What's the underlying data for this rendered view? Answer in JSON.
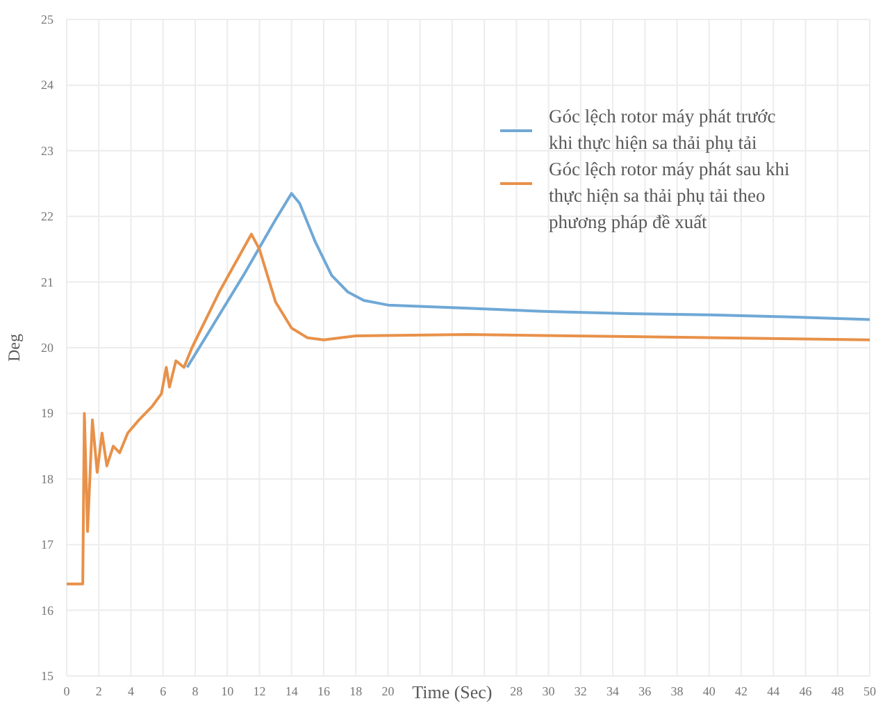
{
  "chart_data": {
    "type": "line",
    "xlabel": "Time (Sec)",
    "ylabel": "Deg",
    "xlim": [
      0,
      50
    ],
    "ylim": [
      15,
      25
    ],
    "xticks": [
      0,
      2,
      4,
      6,
      8,
      10,
      12,
      14,
      16,
      18,
      20,
      {
        "value": 22,
        "label": null
      },
      {
        "value": 24,
        "label": null
      },
      {
        "value": 26,
        "label": null
      },
      28,
      30,
      32,
      34,
      36,
      38,
      40,
      42,
      44,
      46,
      48,
      50
    ],
    "yticks": [
      15,
      16,
      17,
      18,
      19,
      20,
      21,
      22,
      23,
      24,
      25
    ],
    "grid": true,
    "legend": "top right",
    "series": [
      {
        "name": "Góc lệch rotor máy phát trước khi thực hiện sa thải phụ tải",
        "color": "#6fa8d6",
        "x": [
          7.5,
          9,
          11,
          13,
          14,
          14.5,
          15.5,
          16.5,
          17.5,
          18.5,
          20,
          25,
          30,
          35,
          40,
          45,
          50
        ],
        "values": [
          19.7,
          20.3,
          21.1,
          21.95,
          22.35,
          22.2,
          21.6,
          21.1,
          20.85,
          20.72,
          20.65,
          20.6,
          20.55,
          20.52,
          20.5,
          20.47,
          20.43
        ]
      },
      {
        "name": "Góc lệch rotor máy phát sau khi thực hiện sa thải phụ tải theo phương pháp đề xuất",
        "color": "#e8914a",
        "x": [
          0,
          1.0,
          1.1,
          1.3,
          1.6,
          1.9,
          2.2,
          2.5,
          2.9,
          3.3,
          3.8,
          4.5,
          5.3,
          5.9,
          6.2,
          6.4,
          6.8,
          7.3,
          7.8,
          9.5,
          11.5,
          12,
          13,
          14,
          15,
          16,
          18,
          25,
          35,
          50
        ],
        "values": [
          16.4,
          16.4,
          19.0,
          17.2,
          18.9,
          18.1,
          18.7,
          18.2,
          18.5,
          18.4,
          18.7,
          18.9,
          19.1,
          19.3,
          19.7,
          19.4,
          19.8,
          19.7,
          20.0,
          20.85,
          21.73,
          21.5,
          20.7,
          20.3,
          20.15,
          20.12,
          20.18,
          20.2,
          20.17,
          20.12
        ]
      }
    ]
  }
}
